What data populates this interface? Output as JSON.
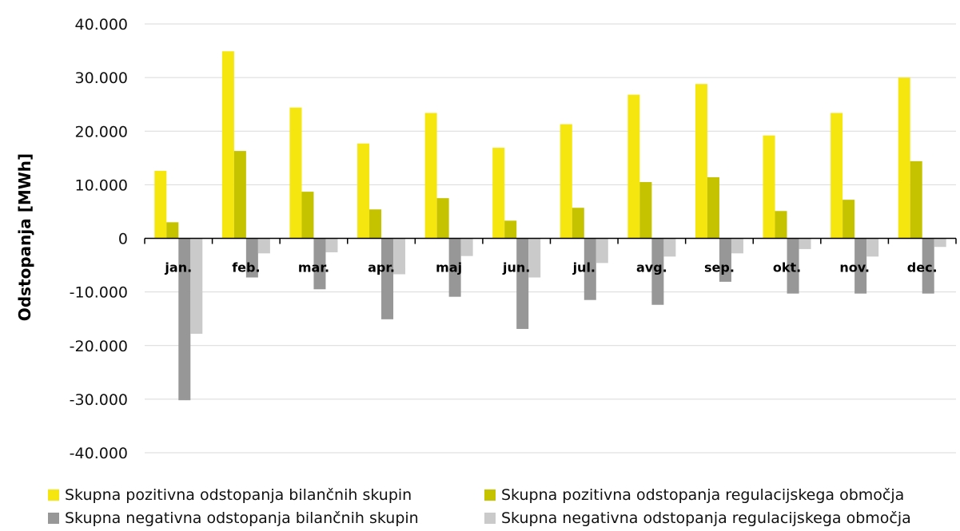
{
  "chart_data": {
    "type": "bar",
    "title": "",
    "xlabel": "",
    "ylabel": "Odstopanja [MWh]",
    "ylim": [
      -40000,
      40000
    ],
    "yticks": [
      40000,
      30000,
      20000,
      10000,
      0,
      -10000,
      -20000,
      -30000,
      -40000
    ],
    "ytick_labels": [
      "40.000",
      "30.000",
      "20.000",
      "10.000",
      "0",
      "-10.000",
      "-20.000",
      "-30.000",
      "-40.000"
    ],
    "grid": true,
    "legend_position": "bottom",
    "categories": [
      "jan.",
      "feb.",
      "mar.",
      "apr.",
      "maj",
      "jun.",
      "jul.",
      "avg.",
      "sep.",
      "okt.",
      "nov.",
      "dec."
    ],
    "series": [
      {
        "name": "Skupna pozitivna odstopanja bilančnih skupin",
        "color": "#f5e60f",
        "values": [
          12600,
          34900,
          24400,
          17700,
          23400,
          16900,
          21300,
          26800,
          28800,
          19200,
          23400,
          30000
        ]
      },
      {
        "name": "Skupna pozitivna odstopanja regulacijskega območja",
        "color": "#c5c200",
        "values": [
          3000,
          16300,
          8700,
          5400,
          7500,
          3300,
          5700,
          10500,
          11400,
          5100,
          7200,
          14400
        ]
      },
      {
        "name": "Skupna negativna odstopanja bilančnih skupin",
        "color": "#979797",
        "values": [
          -30200,
          -7300,
          -9500,
          -15100,
          -10900,
          -16900,
          -11500,
          -12400,
          -8100,
          -10300,
          -10300,
          -10300
        ]
      },
      {
        "name": "Skupna negativna odstopanja regulacijskega območja",
        "color": "#cacaca",
        "values": [
          -17800,
          -2800,
          -2600,
          -6700,
          -3300,
          -7300,
          -4600,
          -3400,
          -2800,
          -2000,
          -3400,
          -1600
        ]
      }
    ]
  }
}
